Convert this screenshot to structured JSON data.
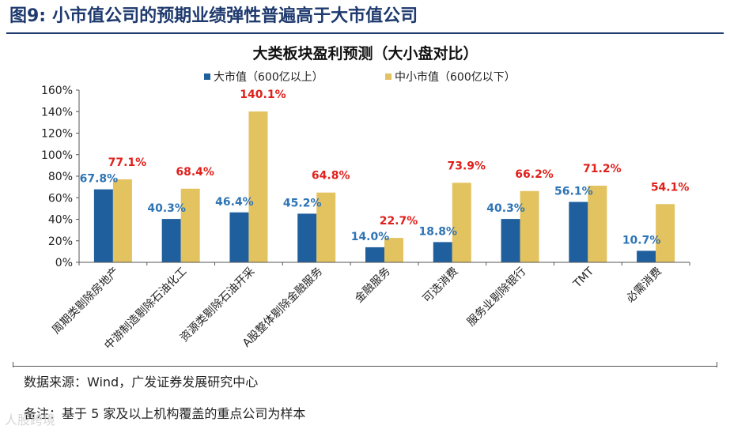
{
  "figure": {
    "number": "图9:",
    "title": "小市值公司的预期业绩弹性普遍高于大市值公司"
  },
  "source_line": "数据来源：Wind，广发证券发展研究中心",
  "note_line": "备注：基于 5 家及以上机构覆盖的重点公司为样本",
  "watermark": "人股跨境",
  "colors": {
    "big_cap": "#1f5f9e",
    "small_cap": "#e3c260",
    "big_label": "#2e74b5",
    "small_label": "#e0201b",
    "title_blue": "#1f3a6e"
  },
  "chart_data": {
    "type": "bar",
    "title": "大类板块盈利预测（大小盘对比）",
    "categories": [
      "周期类剔除房地产",
      "中游制造剔除石油化工",
      "资源类剔除石油开采",
      "A股整体剔除金融服务",
      "金融服务",
      "可选消费",
      "服务业剔除银行",
      "TMT",
      "必需消费"
    ],
    "series": [
      {
        "name": "大市值（600亿以上）",
        "values": [
          67.8,
          40.3,
          46.4,
          45.2,
          14.0,
          18.8,
          40.3,
          56.1,
          10.7
        ],
        "labels": [
          "67.8%",
          "40.3%",
          "46.4%",
          "45.2%",
          "14.0%",
          "18.8%",
          "40.3%",
          "56.1%",
          "10.7%"
        ]
      },
      {
        "name": "中小市值（600亿以下）",
        "values": [
          77.1,
          68.4,
          140.1,
          64.8,
          22.7,
          73.9,
          66.2,
          71.2,
          54.1
        ],
        "labels": [
          "77.1%",
          "68.4%",
          "140.1%",
          "64.8%",
          "22.7%",
          "73.9%",
          "66.2%",
          "71.2%",
          "54.1%"
        ]
      }
    ],
    "ylim": [
      0,
      160
    ],
    "yticks": [
      "0%",
      "20%",
      "40%",
      "60%",
      "80%",
      "100%",
      "120%",
      "140%",
      "160%"
    ],
    "grid": false,
    "legend": "top"
  }
}
